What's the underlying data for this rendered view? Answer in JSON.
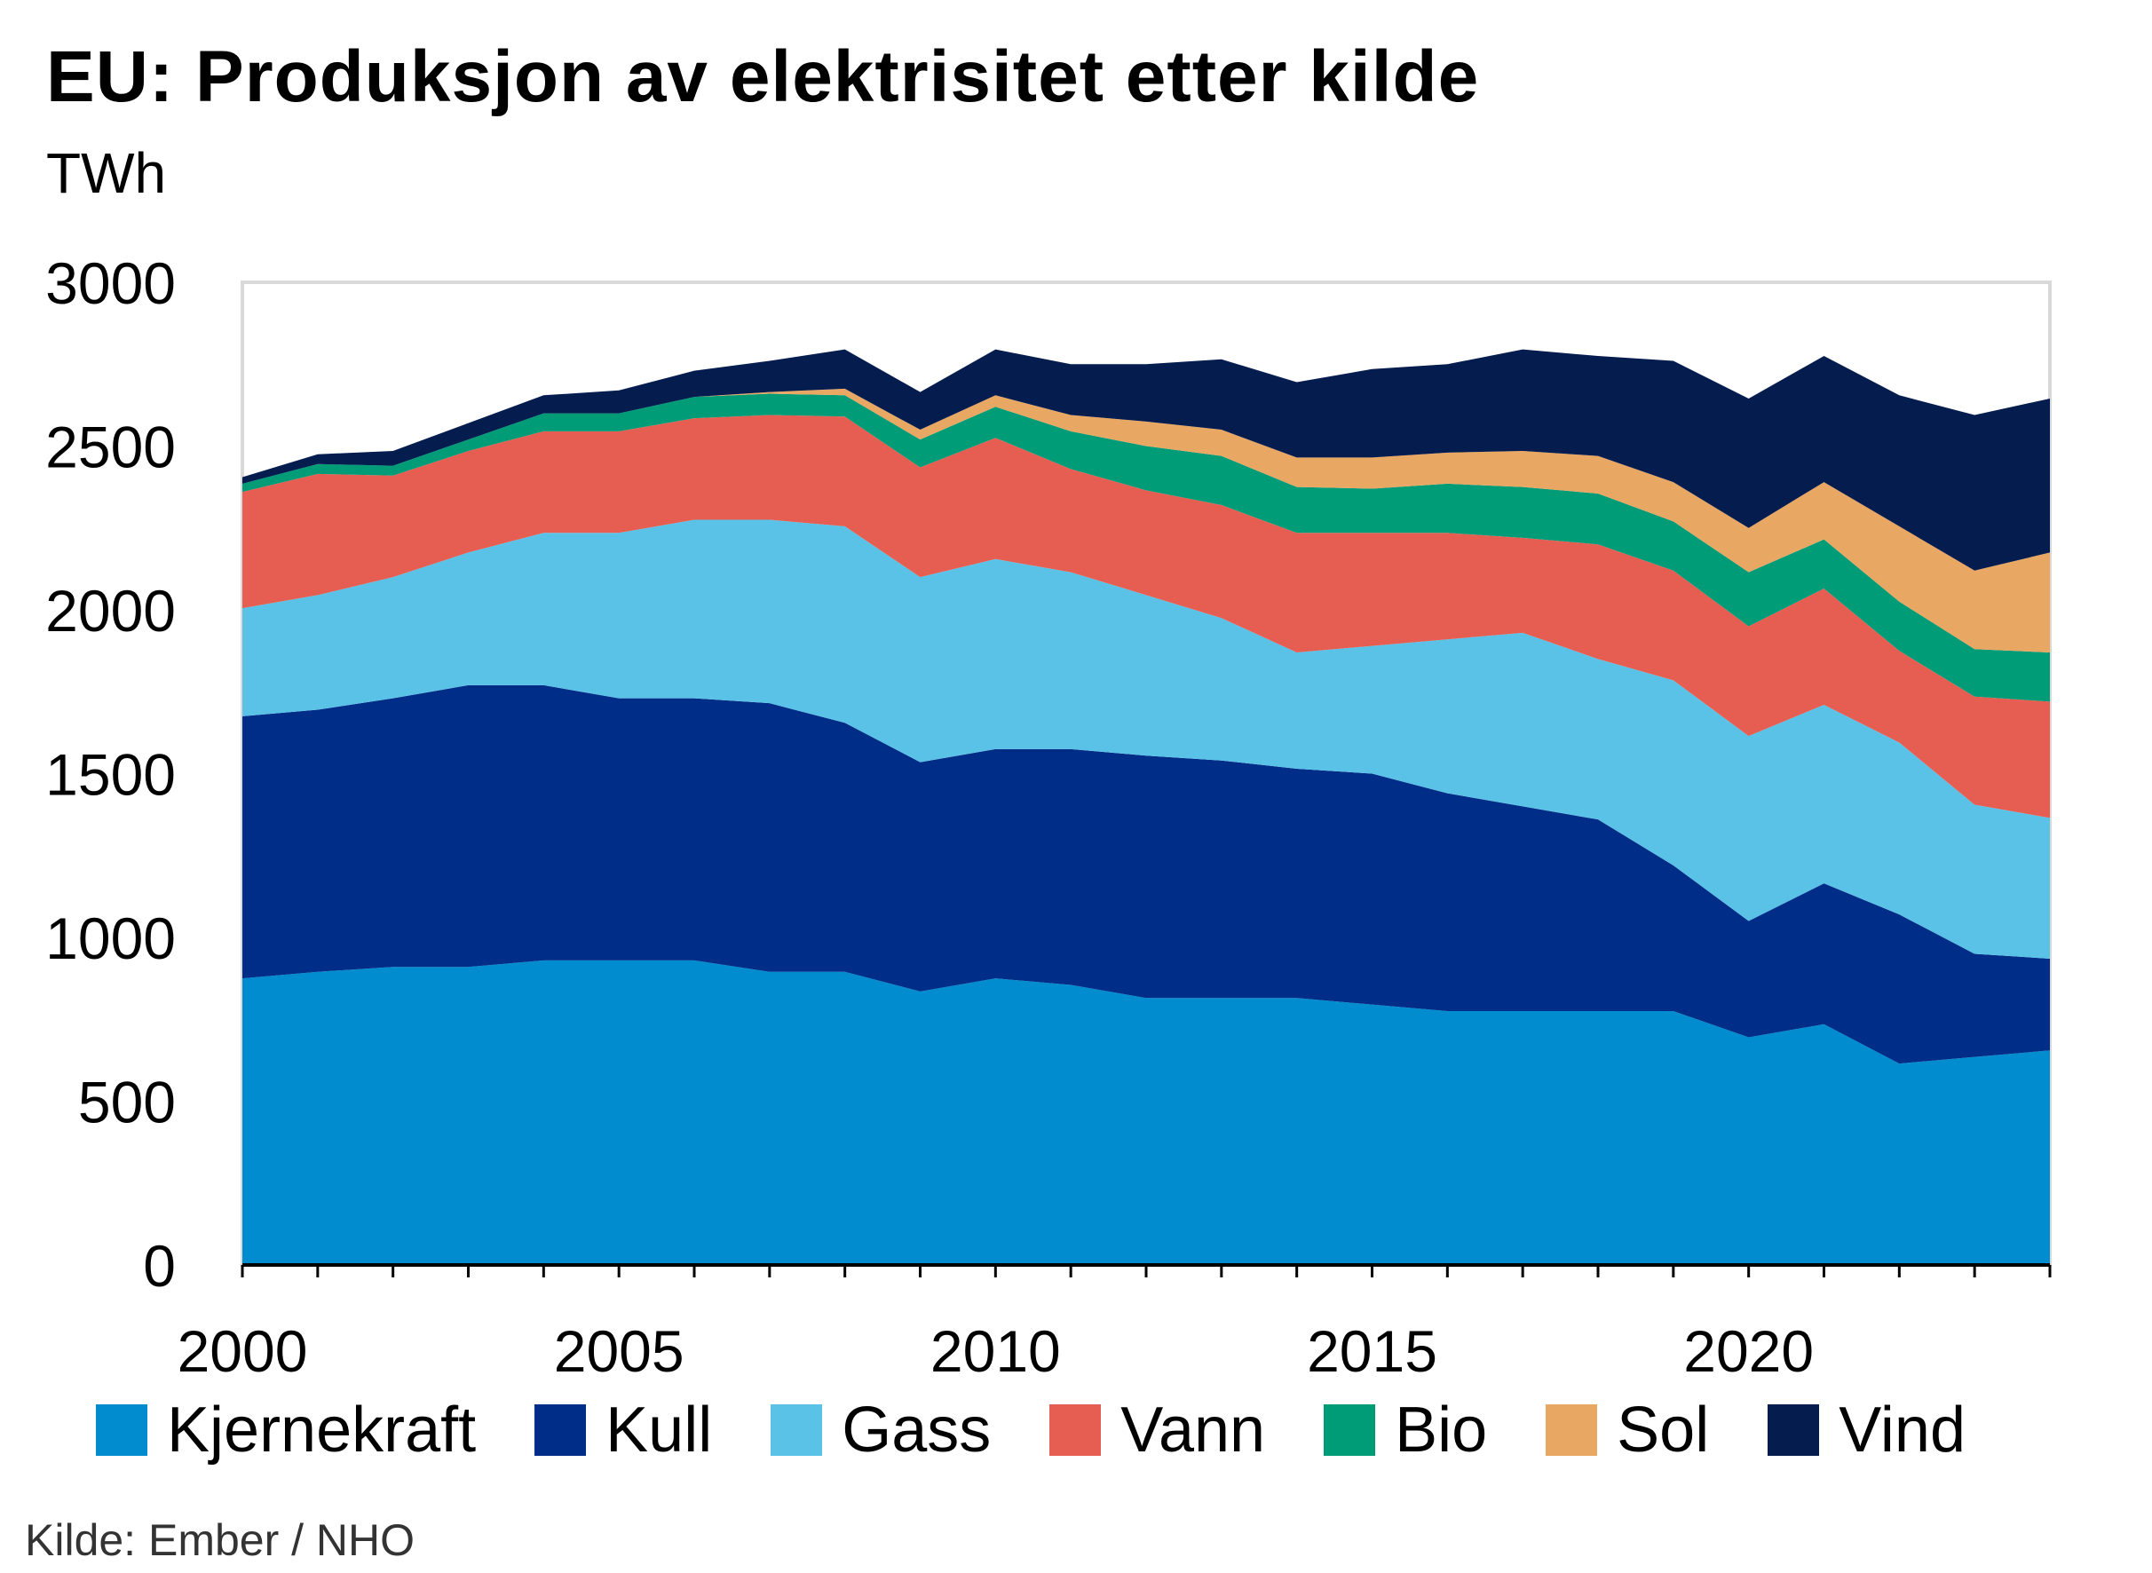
{
  "chart_data": {
    "type": "area",
    "stacked": true,
    "title": "EU: Produksjon av elektrisitet etter kilde",
    "ylabel": "TWh",
    "xlabel": "",
    "ylim": [
      0,
      3000
    ],
    "xlim": [
      2000,
      2024
    ],
    "yticks": [
      0,
      500,
      1000,
      1500,
      2000,
      2500,
      3000
    ],
    "xticks": [
      2000,
      2005,
      2010,
      2015,
      2020
    ],
    "legend_position": "bottom",
    "grid": false,
    "x": [
      2000,
      2001,
      2002,
      2003,
      2004,
      2005,
      2006,
      2007,
      2008,
      2009,
      2010,
      2011,
      2012,
      2013,
      2014,
      2015,
      2016,
      2017,
      2018,
      2019,
      2020,
      2021,
      2022,
      2023,
      2024
    ],
    "series": [
      {
        "name": "Kjernekraft",
        "color": "#008ccf",
        "values": [
          875,
          895,
          910,
          910,
          930,
          930,
          930,
          895,
          895,
          835,
          875,
          855,
          815,
          815,
          815,
          795,
          775,
          775,
          775,
          775,
          695,
          735,
          615,
          635,
          655
        ]
      },
      {
        "name": "Kull",
        "color": "#002d87",
        "values": [
          800,
          800,
          820,
          860,
          840,
          800,
          800,
          820,
          760,
          700,
          700,
          720,
          740,
          725,
          700,
          705,
          665,
          625,
          585,
          445,
          355,
          430,
          455,
          315,
          280
        ]
      },
      {
        "name": "Gass",
        "color": "#5bc2e7",
        "values": [
          330,
          350,
          370,
          405,
          465,
          505,
          545,
          560,
          600,
          565,
          580,
          540,
          490,
          435,
          355,
          390,
          470,
          530,
          490,
          565,
          565,
          545,
          525,
          455,
          430
        ]
      },
      {
        "name": "Vann",
        "color": "#e65e52",
        "values": [
          355,
          370,
          310,
          310,
          310,
          310,
          310,
          320,
          335,
          335,
          370,
          315,
          320,
          345,
          365,
          345,
          325,
          290,
          350,
          335,
          335,
          355,
          280,
          330,
          355
        ]
      },
      {
        "name": "Bio",
        "color": "#009b77",
        "values": [
          25,
          30,
          30,
          35,
          55,
          55,
          65,
          65,
          65,
          85,
          95,
          115,
          135,
          150,
          140,
          135,
          150,
          155,
          155,
          150,
          165,
          150,
          150,
          145,
          150
        ]
      },
      {
        "name": "Sol",
        "color": "#e8a762",
        "values": [
          0,
          0,
          0,
          0,
          0,
          0,
          0,
          5,
          20,
          30,
          35,
          50,
          75,
          80,
          90,
          95,
          95,
          110,
          115,
          120,
          135,
          175,
          230,
          240,
          305
        ]
      },
      {
        "name": "Vind",
        "color": "#041c4e",
        "values": [
          20,
          30,
          45,
          50,
          55,
          70,
          80,
          95,
          120,
          115,
          140,
          155,
          175,
          215,
          230,
          270,
          270,
          310,
          305,
          370,
          395,
          385,
          400,
          475,
          470
        ]
      }
    ]
  },
  "source": "Kilde: Ember / NHO"
}
